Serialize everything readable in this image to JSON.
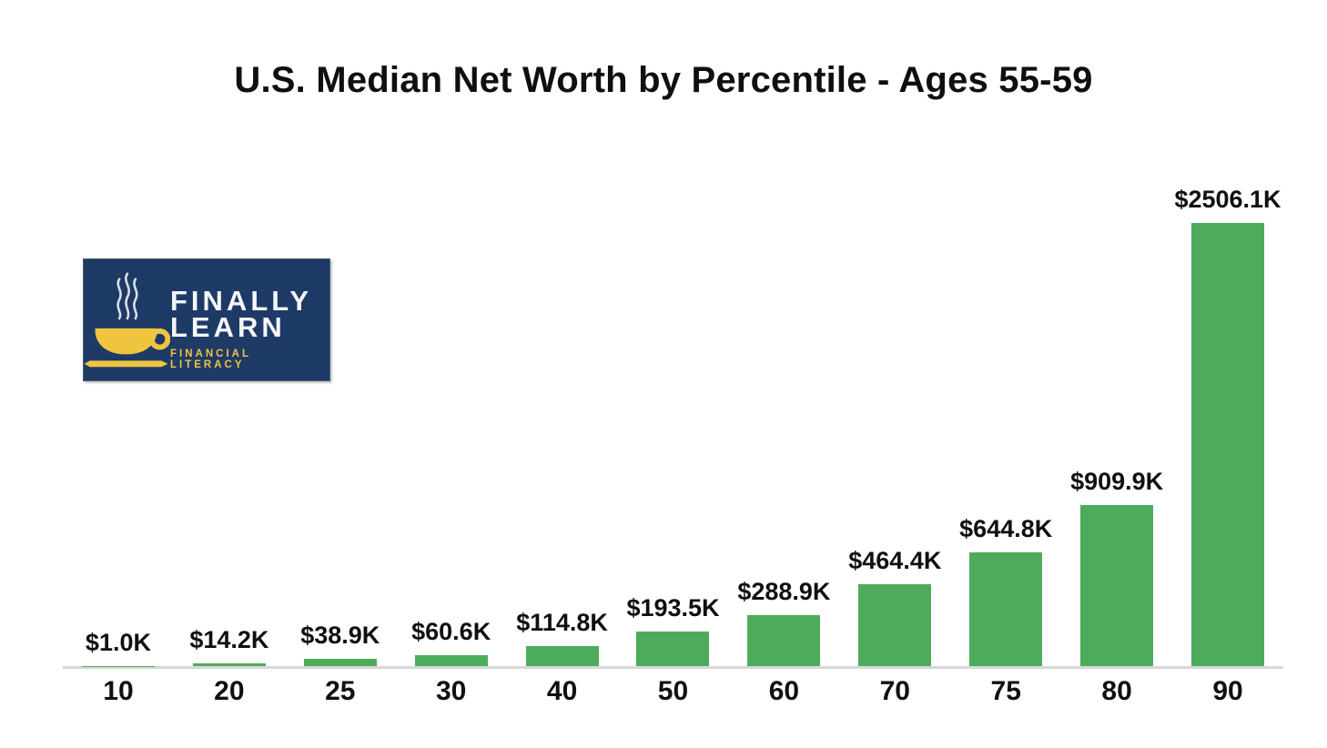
{
  "title": "U.S. Median Net Worth by Percentile - Ages 55-59",
  "logo": {
    "line1": "FINALLY",
    "line2": "LEARN",
    "tagline": "FINANCIAL LITERACY",
    "bg_color": "#1E3A66",
    "gold_color": "#EFC53F",
    "text_color": "#F4F6F9",
    "steam_color": "#D9E0EB"
  },
  "chart_data": {
    "type": "bar",
    "title": "U.S. Median Net Worth by Percentile - Ages 55-59",
    "categories": [
      "10",
      "20",
      "25",
      "30",
      "40",
      "50",
      "60",
      "70",
      "75",
      "80",
      "90"
    ],
    "values": [
      1.0,
      14.2,
      38.9,
      60.6,
      114.8,
      193.5,
      288.9,
      464.4,
      644.8,
      909.9,
      2506.1
    ],
    "data_labels": [
      "$1.0K",
      "$14.2K",
      "$38.9K",
      "$60.6K",
      "$114.8K",
      "$193.5K",
      "$288.9K",
      "$464.4K",
      "$644.8K",
      "$909.9K",
      "$2506.1K"
    ],
    "unit": "thousands of USD",
    "xlabel": "",
    "ylabel": "",
    "ylim": [
      0,
      2780
    ],
    "grid": false,
    "legend": false,
    "bar_color": "#4DAC5B",
    "axis_line_color": "#D8D8D8",
    "label_color": "#101010"
  }
}
